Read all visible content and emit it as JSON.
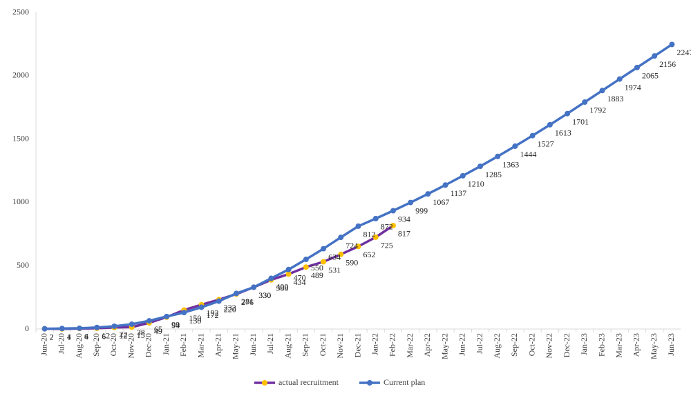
{
  "chart_data": {
    "type": "line",
    "categories": [
      "Jun-20",
      "Jul-20",
      "Aug-20",
      "Sep-20",
      "Oct-20",
      "Nov-20",
      "Dec-20",
      "Jan-21",
      "Feb-21",
      "Mar-21",
      "Apr-21",
      "May-21",
      "Jun-21",
      "Jul-21",
      "Aug-21",
      "Sep-21",
      "Oct-21",
      "Nov-21",
      "Dec-21",
      "Jan-22",
      "Feb-22",
      "Mar-22",
      "Apr-22",
      "May-22",
      "Jun-22",
      "Jul-22",
      "Aug-22",
      "Sep-22",
      "Oct-22",
      "Nov-22",
      "Dec-22",
      "Jan-23",
      "Feb-23",
      "Mar-23",
      "Apr-23",
      "May-23",
      "Jun-23"
    ],
    "series": [
      {
        "name": "actual recruitment",
        "color": "#7030a0",
        "marker_color": "#ffc000",
        "values": [
          2,
          1,
          4,
          6,
          12,
          15,
          49,
          94,
          150,
          192,
          232,
          276,
          330,
          388,
          434,
          489,
          531,
          590,
          652,
          725,
          817,
          null,
          null,
          null,
          null,
          null,
          null,
          null,
          null,
          null,
          null,
          null,
          null,
          null,
          null,
          null,
          null
        ]
      },
      {
        "name": "Current plan",
        "color": "#4472c4",
        "marker_color": "#4472c4",
        "values": [
          2,
          4,
          6,
          12,
          22,
          38,
          65,
          99,
          130,
          172,
          220,
          281,
          330,
          400,
          470,
          550,
          634,
          724,
          812,
          872,
          934,
          999,
          1067,
          1137,
          1210,
          1285,
          1363,
          1444,
          1527,
          1613,
          1701,
          1792,
          1883,
          1974,
          2065,
          2156,
          2247
        ]
      }
    ],
    "ylim": [
      0,
      2500
    ],
    "yticks": [
      0,
      500,
      1000,
      1500,
      2000,
      2500
    ],
    "grid": false,
    "legend": "bottom"
  }
}
